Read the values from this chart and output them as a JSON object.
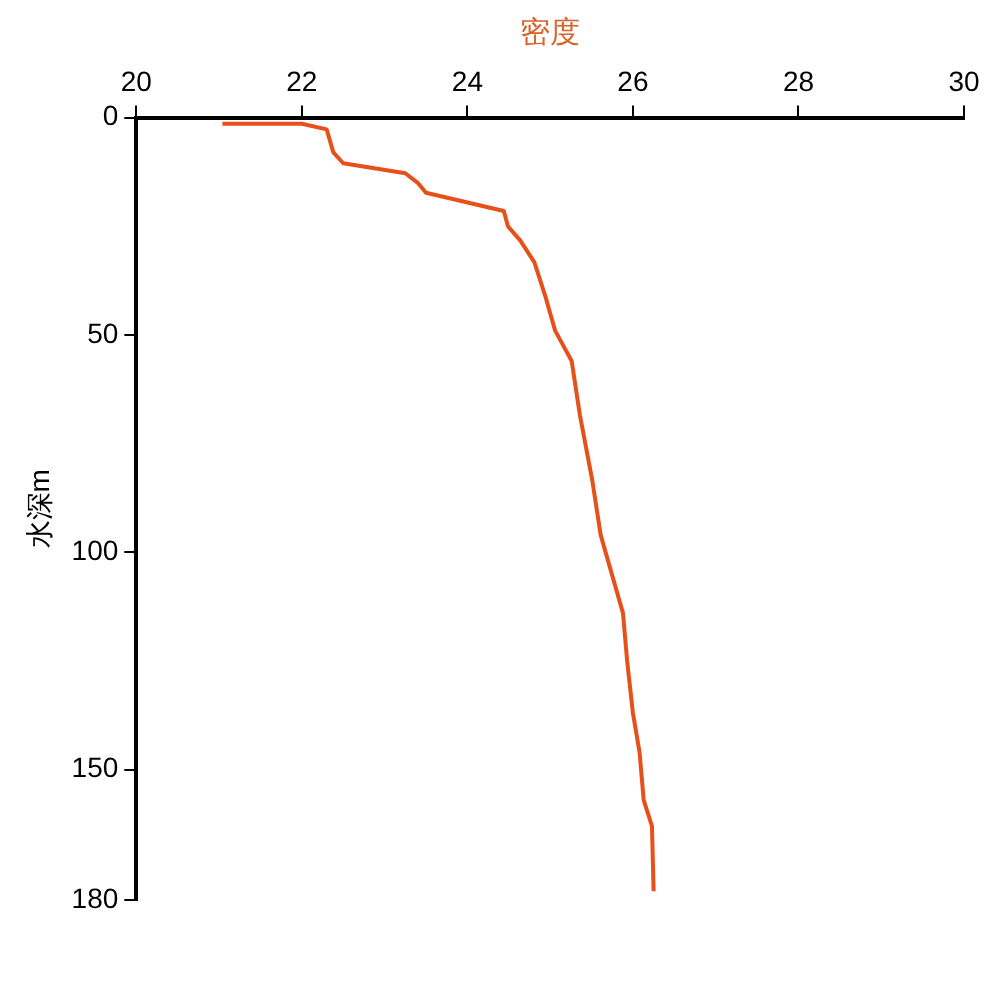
{
  "chart_data": {
    "type": "line",
    "xlabel": "密度",
    "ylabel": "水深m",
    "xlim": [
      20,
      30
    ],
    "xticks": [
      20,
      22,
      24,
      26,
      28,
      30
    ],
    "ylim": [
      180,
      0
    ],
    "yticks": [
      0,
      50,
      100,
      150,
      180
    ],
    "grid": false,
    "legend": false,
    "marker": "none",
    "series": [
      {
        "color": "#e8501a",
        "x": [
          21.04,
          22.0,
          22.3,
          22.38,
          22.5,
          23.25,
          23.4,
          23.5,
          24.44,
          24.49,
          24.64,
          24.81,
          24.94,
          25.06,
          25.26,
          25.36,
          25.51,
          25.61,
          25.76,
          25.88,
          25.93,
          26.0,
          26.08,
          26.13,
          26.23,
          26.25
        ],
        "values": [
          1.4,
          1.4,
          2.7,
          8,
          10.5,
          12.8,
          15,
          17.3,
          21.5,
          25,
          28.3,
          33.3,
          41,
          49,
          56,
          68.5,
          83.6,
          96,
          106,
          114,
          125,
          137,
          146,
          157,
          163,
          178
        ]
      }
    ]
  }
}
